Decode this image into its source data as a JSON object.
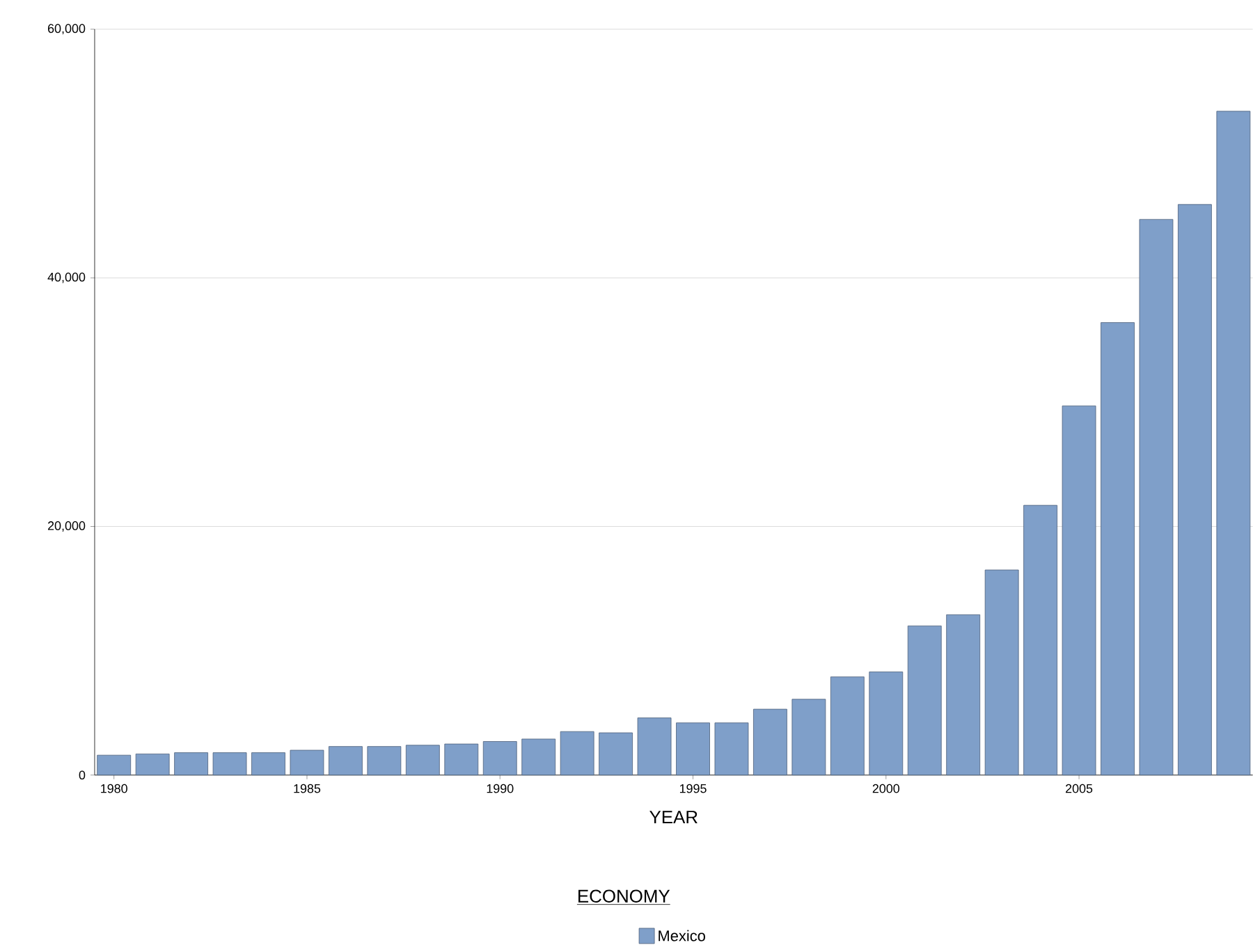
{
  "chart_data": {
    "type": "bar",
    "xlabel": "YEAR",
    "legend_title": "ECONOMY",
    "legend": "bottom",
    "grid": "y",
    "x": [
      1980,
      1981,
      1982,
      1983,
      1984,
      1985,
      1986,
      1987,
      1988,
      1989,
      1990,
      1991,
      1992,
      1993,
      1994,
      1995,
      1996,
      1997,
      1998,
      1999,
      2000,
      2001,
      2002,
      2003,
      2004,
      2005,
      2006,
      2007,
      2008,
      2009
    ],
    "series": [
      {
        "name": "Mexico",
        "color": "#7f9fc9",
        "values": [
          1600,
          1700,
          1800,
          1800,
          1800,
          2000,
          2300,
          2300,
          2400,
          2500,
          2700,
          2900,
          3500,
          3400,
          4600,
          4200,
          4200,
          5300,
          6100,
          7900,
          8300,
          12000,
          12900,
          16500,
          21700,
          29700,
          36400,
          44700,
          45900,
          53400
        ]
      }
    ],
    "xlim": [
      1979.5,
      2009.5
    ],
    "xticks": [
      1980,
      1985,
      1990,
      1995,
      2000,
      2005
    ],
    "ylim": [
      0,
      60000
    ],
    "yticks": [
      0,
      {
        "value": 20000,
        "label": "20,000"
      },
      {
        "value": 40000,
        "label": "40,000"
      },
      {
        "value": 60000,
        "label": "60,000"
      }
    ]
  }
}
